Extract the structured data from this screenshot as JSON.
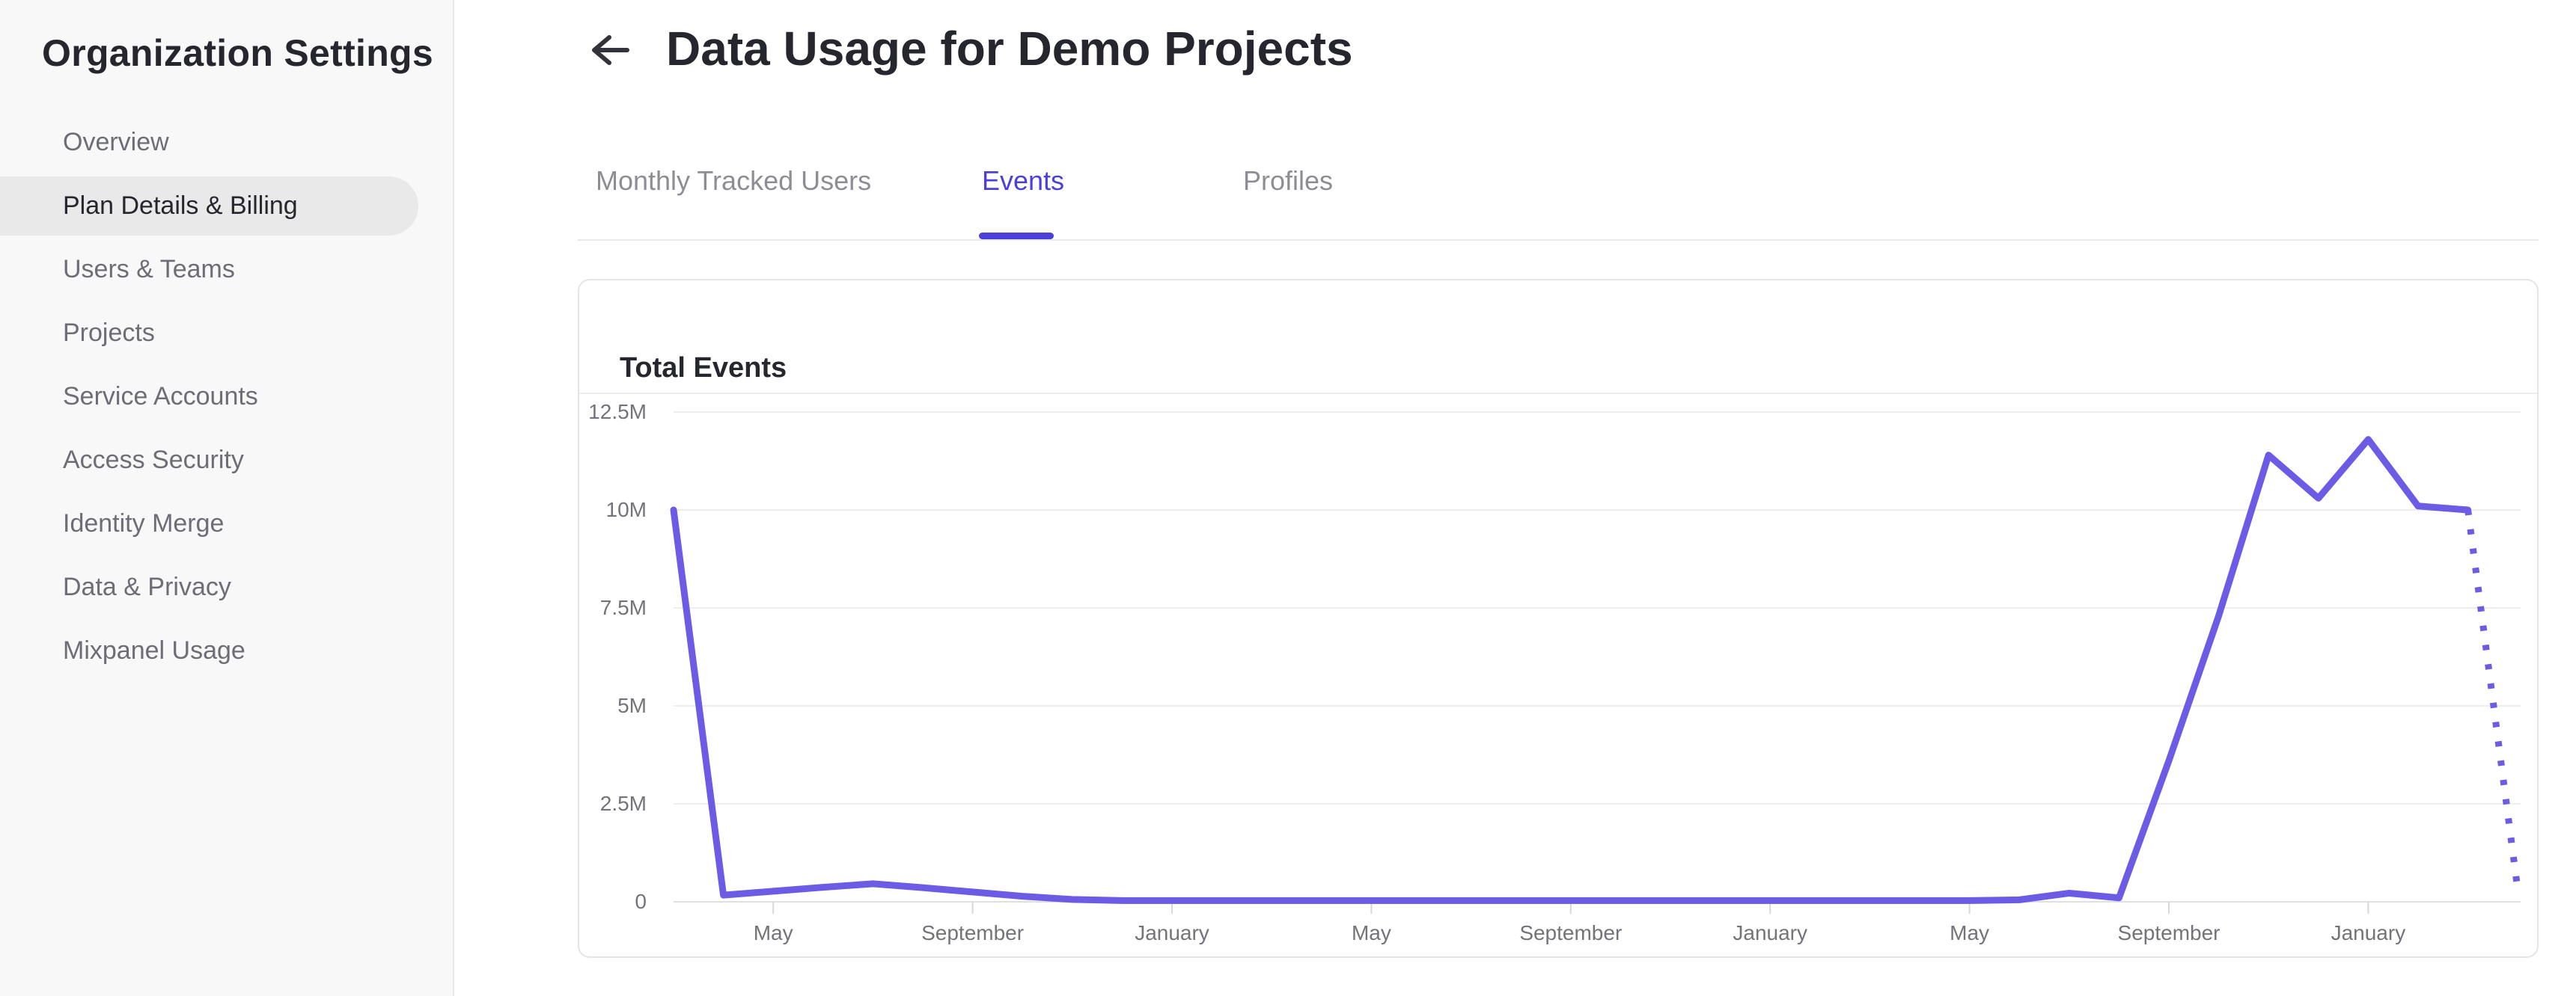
{
  "colors": {
    "accent_purple": "#4c40da",
    "line_purple": "#6c5be4",
    "active_pill_gray": "#e9e9ea"
  },
  "sidebar": {
    "title": "Organization Settings",
    "items": [
      {
        "label": "Overview",
        "active": false
      },
      {
        "label": "Plan Details & Billing",
        "active": true
      },
      {
        "label": "Users & Teams",
        "active": false
      },
      {
        "label": "Projects",
        "active": false
      },
      {
        "label": "Service Accounts",
        "active": false
      },
      {
        "label": "Access Security",
        "active": false
      },
      {
        "label": "Identity Merge",
        "active": false
      },
      {
        "label": "Data & Privacy",
        "active": false
      },
      {
        "label": "Mixpanel Usage",
        "active": false
      }
    ]
  },
  "header": {
    "back_icon": "arrow-left-icon",
    "title": "Data Usage for Demo Projects"
  },
  "tabs": [
    {
      "label": "Monthly Tracked Users",
      "active": false
    },
    {
      "label": "Events",
      "active": true
    },
    {
      "label": "Profiles",
      "active": false
    }
  ],
  "card": {
    "title": "Total Events"
  },
  "chart_data": {
    "type": "line",
    "title": "Total Events",
    "y_tick_labels": [
      "12.5M",
      "10M",
      "7.5M",
      "5M",
      "2.5M",
      "0"
    ],
    "y_tick_values_millions": [
      12.5,
      10,
      7.5,
      5,
      2.5,
      0
    ],
    "ylim_millions": [
      0,
      12.5
    ],
    "x_tick_labels": [
      "May",
      "September",
      "January",
      "May",
      "September",
      "January",
      "May",
      "September",
      "January"
    ],
    "x_tick_month_indices": [
      2,
      6,
      10,
      14,
      18,
      22,
      26,
      30,
      34
    ],
    "first_point_month": "March",
    "values_millions": [
      10,
      0.17,
      0.27,
      0.37,
      0.46,
      0.36,
      0.25,
      0.14,
      0.06,
      0.03,
      0.03,
      0.03,
      0.03,
      0.03,
      0.03,
      0.03,
      0.03,
      0.03,
      0.03,
      0.03,
      0.03,
      0.03,
      0.03,
      0.03,
      0.03,
      0.03,
      0.03,
      0.05,
      0.22,
      0.1,
      3.6,
      7.3,
      11.4,
      10.3,
      11.8,
      10.1,
      10.0,
      0.3
    ],
    "dotted_from_index": 36,
    "legend": "none",
    "grid": "horizontal"
  }
}
